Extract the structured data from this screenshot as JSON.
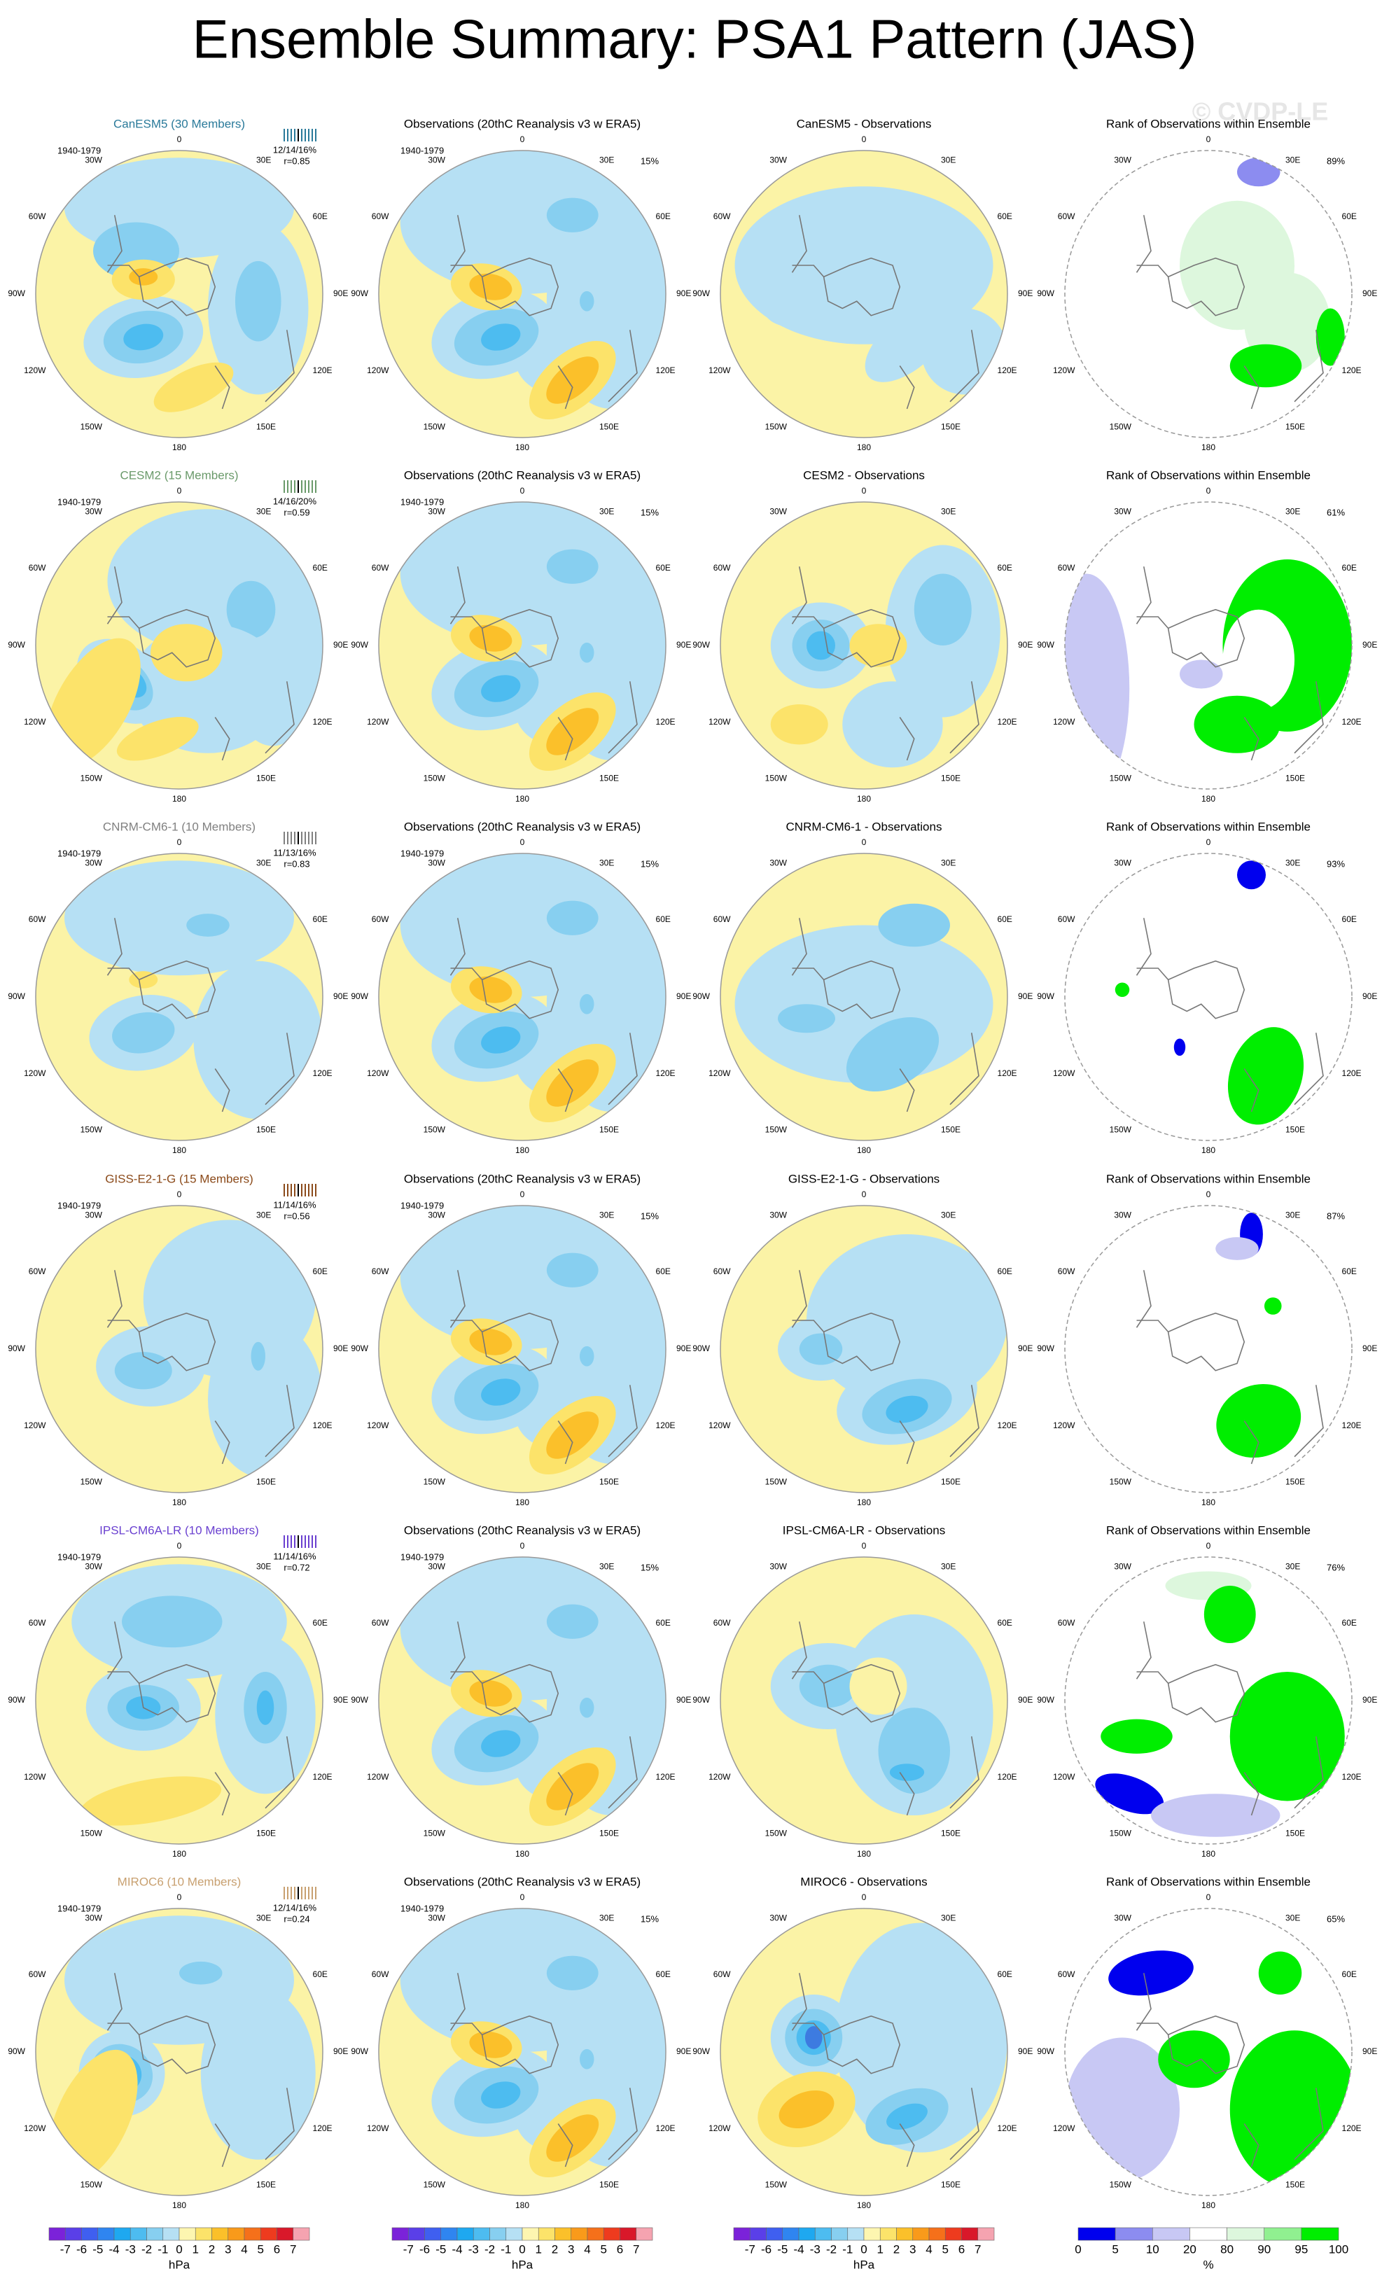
{
  "header": {
    "title": "Ensemble Summary: PSA1 Pattern (JAS)",
    "watermark": "© CVDP-LE"
  },
  "longitudes": [
    "0",
    "30E",
    "60E",
    "90E",
    "120E",
    "150E",
    "180",
    "150W",
    "120W",
    "90W",
    "60W",
    "30W"
  ],
  "rows": [
    {
      "model": "CanESM5 (30 Members)",
      "color": "#2a7a9a",
      "period": "1940-1979",
      "stats": "12/14/16%",
      "r": "r=0.85",
      "obs_title": "Observations (20thC Reanalysis v3 w ERA5)",
      "obs_period": "1940-1979",
      "obs_pct": "15%",
      "diff_title": "CanESM5 - Observations",
      "rank_title": "Rank of Observations within Ensemble",
      "rank_pct": "89%"
    },
    {
      "model": "CESM2 (15 Members)",
      "color": "#6a9a6a",
      "period": "1940-1979",
      "stats": "14/16/20%",
      "r": "r=0.59",
      "obs_title": "Observations (20thC Reanalysis v3 w ERA5)",
      "obs_period": "1940-1979",
      "obs_pct": "15%",
      "diff_title": "CESM2 - Observations",
      "rank_title": "Rank of Observations within Ensemble",
      "rank_pct": "61%"
    },
    {
      "model": "CNRM-CM6-1 (10 Members)",
      "color": "#808080",
      "period": "1940-1979",
      "stats": "11/13/16%",
      "r": "r=0.83",
      "obs_title": "Observations (20thC Reanalysis v3 w ERA5)",
      "obs_period": "1940-1979",
      "obs_pct": "15%",
      "diff_title": "CNRM-CM6-1 - Observations",
      "rank_title": "Rank of Observations within Ensemble",
      "rank_pct": "93%"
    },
    {
      "model": "GISS-E2-1-G (15 Members)",
      "color": "#8b4a1a",
      "period": "1940-1979",
      "stats": "11/14/16%",
      "r": "r=0.56",
      "obs_title": "Observations (20thC Reanalysis v3 w ERA5)",
      "obs_period": "1940-1979",
      "obs_pct": "15%",
      "diff_title": "GISS-E2-1-G - Observations",
      "rank_title": "Rank of Observations within Ensemble",
      "rank_pct": "87%"
    },
    {
      "model": "IPSL-CM6A-LR (10 Members)",
      "color": "#6a40d0",
      "period": "1940-1979",
      "stats": "11/14/16%",
      "r": "r=0.72",
      "obs_title": "Observations (20thC Reanalysis v3 w ERA5)",
      "obs_period": "1940-1979",
      "obs_pct": "15%",
      "diff_title": "IPSL-CM6A-LR - Observations",
      "rank_title": "Rank of Observations within Ensemble",
      "rank_pct": "76%"
    },
    {
      "model": "MIROC6 (10 Members)",
      "color": "#c8a070",
      "period": "1940-1979",
      "stats": "12/14/16%",
      "r": "r=0.24",
      "obs_title": "Observations (20thC Reanalysis v3 w ERA5)",
      "obs_period": "1940-1979",
      "obs_pct": "15%",
      "diff_title": "MIROC6 - Observations",
      "rank_title": "Rank of Observations within Ensemble",
      "rank_pct": "65%"
    }
  ],
  "colorbar": {
    "labels": [
      -7,
      -6,
      -5,
      -4,
      -3,
      -2,
      -1,
      0,
      1,
      2,
      3,
      4,
      5,
      6,
      7
    ],
    "units": "hPa",
    "colors": [
      "#7b22d9",
      "#5a3fe8",
      "#3f5ff0",
      "#2f85f0",
      "#1ea8f0",
      "#4dbcf0",
      "#87cff0",
      "#b6e0f4",
      "#fdf6b0",
      "#fce36a",
      "#fbc02a",
      "#f99a1a",
      "#f5701a",
      "#ee3b1e",
      "#d9182a",
      "#f5a3b0"
    ]
  },
  "rank_colorbar": {
    "labels": [
      0,
      5,
      10,
      20,
      80,
      90,
      95,
      100
    ],
    "units": "%",
    "colors": [
      "#0000ee",
      "#8c8cf0",
      "#c8c8f4",
      "#ffffff",
      "#ddf7dd",
      "#90f090",
      "#00ee00"
    ]
  }
}
